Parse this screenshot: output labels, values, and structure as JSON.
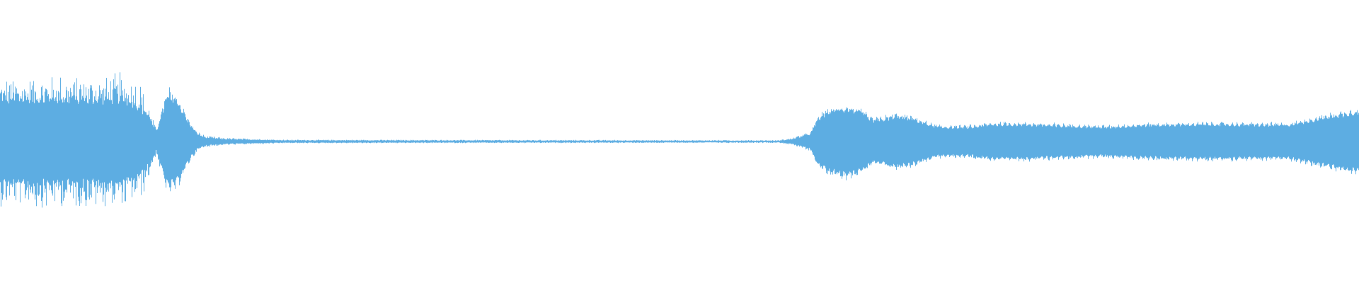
{
  "waveform": {
    "color": "#5dade2",
    "background": "#ffffff"
  }
}
